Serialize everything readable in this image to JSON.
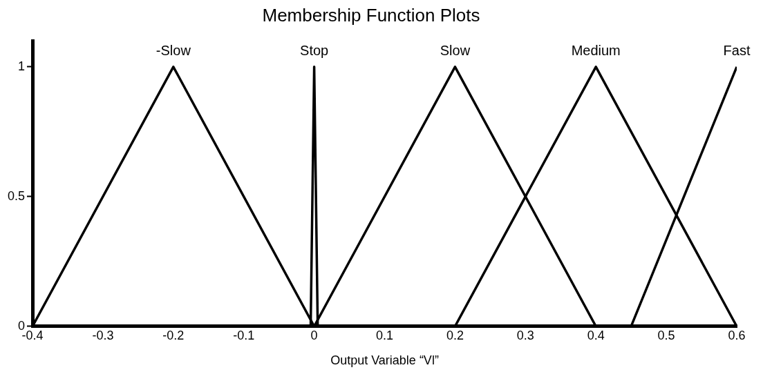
{
  "chart_data": {
    "type": "line",
    "title": "Membership Function Plots",
    "xlabel": "Output Variable “Vl”",
    "xlim": [
      -0.4,
      0.6
    ],
    "xticks": [
      -0.4,
      -0.3,
      -0.2,
      -0.1,
      0,
      0.1,
      0.2,
      0.3,
      0.4,
      0.5,
      0.6
    ],
    "ylim": [
      0,
      1.1
    ],
    "yticks": [
      0,
      0.5,
      1
    ],
    "grid": false,
    "legend": false,
    "marker": "none",
    "line_style": "solid",
    "series": [
      {
        "name": "-Slow",
        "color": "#000000",
        "x": [
          -0.4,
          -0.2,
          0
        ],
        "values": [
          0,
          1,
          0
        ]
      },
      {
        "name": "Stop",
        "color": "#000000",
        "x": [
          -0.005,
          0,
          0.005
        ],
        "values": [
          0,
          1,
          0
        ]
      },
      {
        "name": "Slow",
        "color": "#000000",
        "x": [
          0,
          0.2,
          0.4
        ],
        "values": [
          0,
          1,
          0
        ]
      },
      {
        "name": "Medium",
        "color": "#000000",
        "x": [
          0.2,
          0.4,
          0.6
        ],
        "values": [
          0,
          1,
          0
        ]
      },
      {
        "name": "Fast",
        "color": "#000000",
        "x": [
          0.45,
          0.6
        ],
        "values": [
          0,
          1
        ]
      }
    ]
  }
}
